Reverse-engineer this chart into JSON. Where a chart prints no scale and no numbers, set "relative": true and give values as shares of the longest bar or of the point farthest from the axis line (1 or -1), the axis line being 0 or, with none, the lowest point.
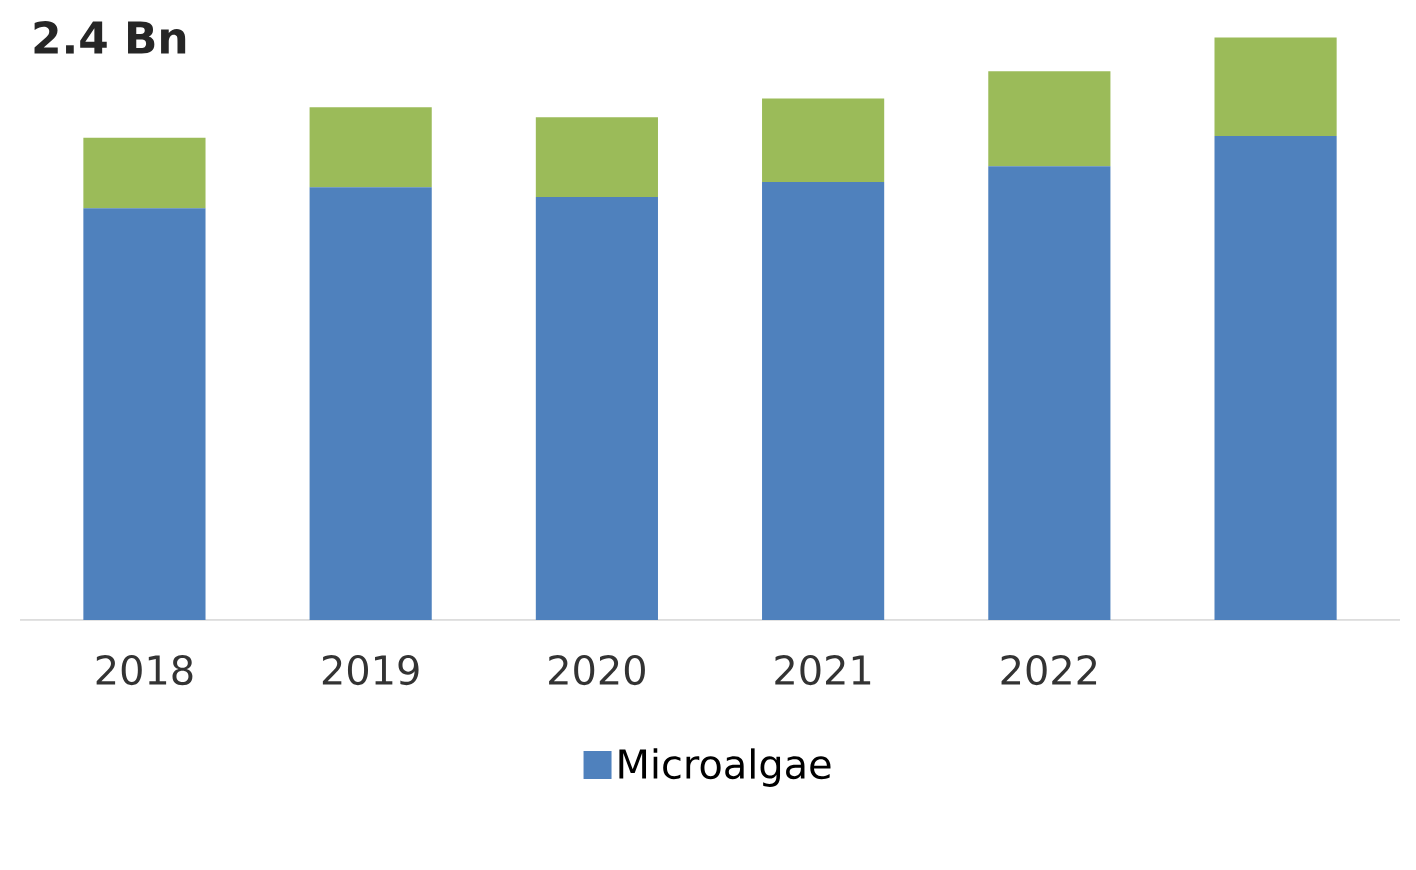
{
  "chart_data": {
    "type": "bar",
    "stacked": true,
    "relative": true,
    "legend": "bottom",
    "annotations": [
      "2.4 Bn"
    ],
    "categories": [
      "2018",
      "2019",
      "2020",
      "2021",
      "2022",
      null
    ],
    "series": [
      {
        "name": "Microalgae",
        "color": "#4f81bd",
        "values": [
          0.707,
          0.743,
          0.726,
          0.752,
          0.779,
          0.831
        ]
      },
      {
        "color": "#9bbb59",
        "values": [
          0.121,
          0.137,
          0.137,
          0.143,
          0.163,
          0.169
        ]
      }
    ]
  }
}
